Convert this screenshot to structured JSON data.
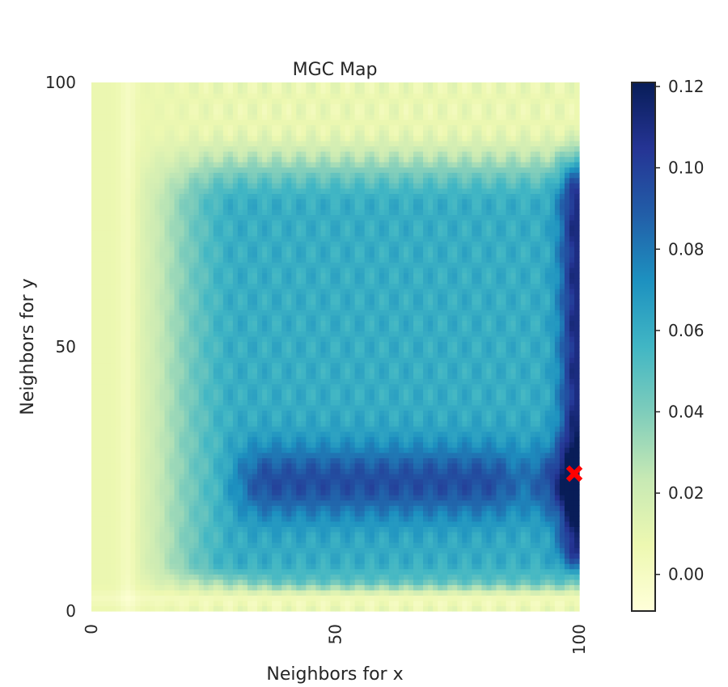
{
  "chart_data": {
    "type": "heatmap",
    "title": "MGC Map",
    "xlabel": "Neighbors for x",
    "ylabel": "Neighbors for y",
    "xlim": [
      0,
      100
    ],
    "ylim": [
      0,
      100
    ],
    "x_ticks": [
      0,
      50,
      100
    ],
    "y_ticks": [
      0,
      50,
      100
    ],
    "grid_size": 100,
    "colorscale": "YlGnBu",
    "colorbar": {
      "min": -0.009,
      "max": 0.121,
      "ticks": [
        "0.00",
        "0.02",
        "0.04",
        "0.06",
        "0.08",
        "0.10",
        "0.12"
      ],
      "tick_values": [
        0.0,
        0.02,
        0.04,
        0.06,
        0.08,
        0.1,
        0.12
      ]
    },
    "optimal_scale": {
      "x": 99,
      "y": 26,
      "marker": "X",
      "color": "#ff0000"
    },
    "regions": [
      {
        "desc": "x 0-8 strip",
        "value": 0.005
      },
      {
        "desc": "y 0-5 strip",
        "value": 0.0
      },
      {
        "desc": "top band y 88-100",
        "value": 0.008
      },
      {
        "desc": "central plateau",
        "value": 0.06
      },
      {
        "desc": "lower band y 18-30",
        "value": 0.095
      },
      {
        "desc": "right column x 96-100, y 10-80",
        "value": 0.11
      },
      {
        "desc": "peak near x 99, y 24",
        "value": 0.121
      }
    ]
  }
}
